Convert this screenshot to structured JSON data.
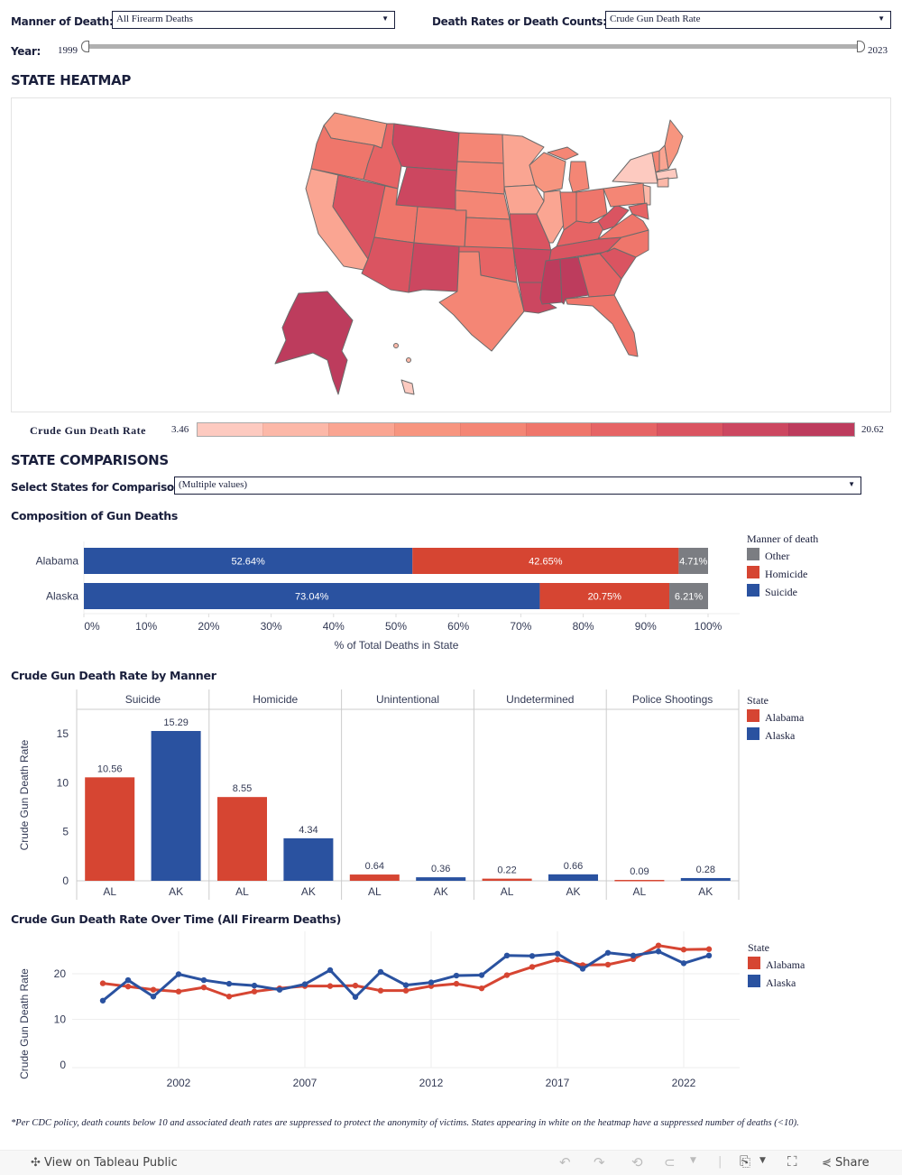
{
  "filters": {
    "manner_label": "Manner of Death:",
    "manner_value": "All Firearm Deaths",
    "rates_label": "Death Rates or Death Counts:",
    "rates_value": "Crude Gun Death Rate",
    "year_label": "Year:",
    "year_min": "1999",
    "year_max": "2023"
  },
  "heatmap": {
    "title": "STATE HEATMAP",
    "legend_label": "Crude Gun Death Rate",
    "legend_min": "3.46",
    "legend_max": "20.62",
    "color_steps": [
      "#fdcac0",
      "#fcb8a8",
      "#faa592",
      "#f7957f",
      "#f48675",
      "#ef766b",
      "#e66465",
      "#da5461",
      "#cc4760",
      "#bd3c5d"
    ],
    "border_color": "#6b6b6b"
  },
  "comparisons": {
    "title": "STATE COMPARISONS",
    "select_label": "Select States for Comparison:",
    "select_value": "(Multiple values)"
  },
  "colors": {
    "suicide": "#2a52a0",
    "homicide": "#d64532",
    "other": "#7b7d82",
    "alabama": "#d64532",
    "alaska": "#2a52a0"
  },
  "chart_data": [
    {
      "type": "bar",
      "orientation": "horizontal-stacked",
      "title": "Composition of Gun Deaths",
      "categories": [
        "Alabama",
        "Alaska"
      ],
      "series": [
        {
          "name": "Suicide",
          "values": [
            52.64,
            73.04
          ],
          "labels": [
            "52.64%",
            "73.04%"
          ]
        },
        {
          "name": "Homicide",
          "values": [
            42.65,
            20.75
          ],
          "labels": [
            "42.65%",
            "20.75%"
          ]
        },
        {
          "name": "Other",
          "values": [
            4.71,
            6.21
          ],
          "labels": [
            "4.71%",
            "6.21%"
          ]
        }
      ],
      "xlabel": "% of Total Deaths in State",
      "xlim": [
        0,
        100
      ],
      "xticks": [
        "0%",
        "10%",
        "20%",
        "30%",
        "40%",
        "50%",
        "60%",
        "70%",
        "80%",
        "90%",
        "100%"
      ],
      "legend": {
        "title": "Manner of death",
        "entries": [
          "Other",
          "Homicide",
          "Suicide"
        ],
        "placement": "right"
      }
    },
    {
      "type": "bar",
      "title": "Crude Gun Death Rate by Manner",
      "panels": [
        "Suicide",
        "Homicide",
        "Unintentional",
        "Undetermined",
        "Police Shootings"
      ],
      "categories": [
        "AL",
        "AK"
      ],
      "series": [
        {
          "name": "Alabama",
          "values": [
            10.56,
            8.55,
            0.64,
            0.22,
            0.09
          ],
          "labels": [
            "10.56",
            "8.55",
            "0.64",
            "0.22",
            "0.09"
          ]
        },
        {
          "name": "Alaska",
          "values": [
            15.29,
            4.34,
            0.36,
            0.66,
            0.28
          ],
          "labels": [
            "15.29",
            "4.34",
            "0.36",
            "0.66",
            "0.28"
          ]
        }
      ],
      "ylabel": "Crude Gun Death Rate",
      "ylim": [
        0,
        17.5
      ],
      "yticks": [
        "0",
        "5",
        "10",
        "15"
      ],
      "legend": {
        "title": "State",
        "entries": [
          "Alabama",
          "Alaska"
        ],
        "placement": "right"
      }
    },
    {
      "type": "line",
      "title": "Crude Gun Death Rate Over Time (All Firearm Deaths)",
      "x": [
        1999,
        2000,
        2001,
        2002,
        2003,
        2004,
        2005,
        2006,
        2007,
        2008,
        2009,
        2010,
        2011,
        2012,
        2013,
        2014,
        2015,
        2016,
        2017,
        2018,
        2019,
        2020,
        2021,
        2022,
        2023
      ],
      "series": [
        {
          "name": "Alabama",
          "values": [
            17.9,
            17.2,
            16.5,
            16.1,
            17.0,
            15.0,
            16.1,
            16.8,
            17.3,
            17.3,
            17.4,
            16.3,
            16.3,
            17.3,
            17.8,
            16.8,
            19.7,
            21.5,
            23.1,
            21.9,
            22.0,
            23.2,
            26.2,
            25.3,
            25.4
          ]
        },
        {
          "name": "Alaska",
          "values": [
            14.1,
            18.6,
            15.0,
            19.9,
            18.6,
            17.8,
            17.4,
            16.5,
            17.7,
            20.8,
            14.9,
            20.4,
            17.5,
            18.1,
            19.6,
            19.7,
            24.0,
            23.9,
            24.4,
            21.1,
            24.6,
            24.0,
            24.9,
            22.3,
            24.0
          ]
        }
      ],
      "ylabel": "Crude Gun Death Rate",
      "ylim": [
        0,
        28
      ],
      "yticks": [
        "0",
        "10",
        "20"
      ],
      "xticks": [
        "2002",
        "2007",
        "2012",
        "2017",
        "2022"
      ],
      "grid": true,
      "legend": {
        "title": "State",
        "entries": [
          "Alabama",
          "Alaska"
        ],
        "placement": "right"
      }
    }
  ],
  "footnote": "*Per CDC policy, death counts below 10 and associated death rates are suppressed to protect the anonymity of victims. States appearing in white on the heatmap have a suppressed number of deaths (<10).",
  "toolbar": {
    "view_label": "View on Tableau Public",
    "share_label": "Share"
  }
}
